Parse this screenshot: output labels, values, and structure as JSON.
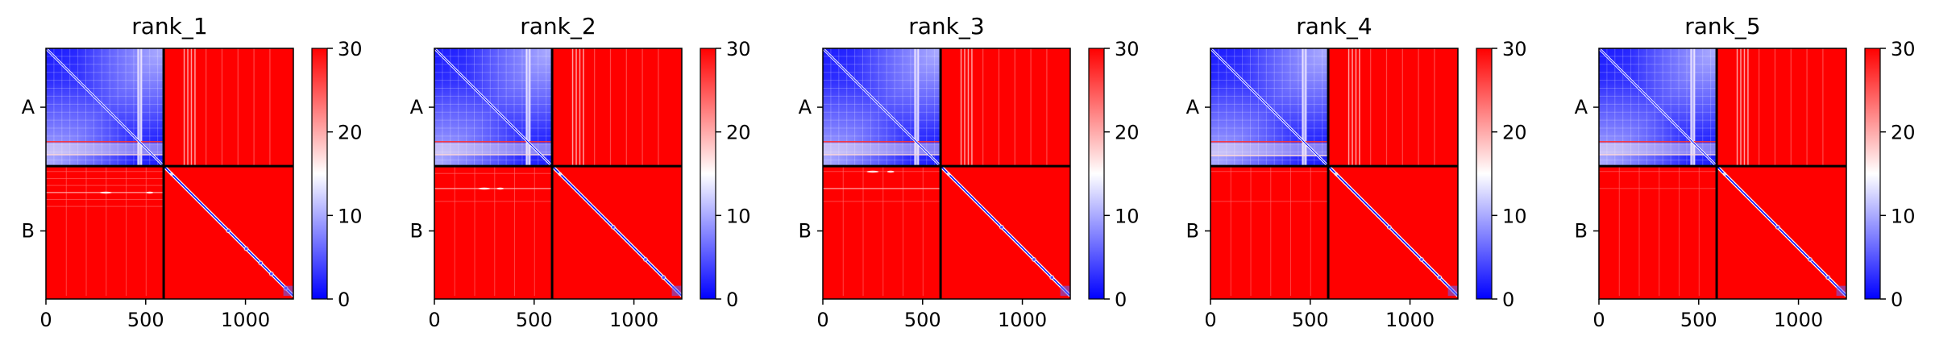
{
  "chart_data": [
    {
      "type": "heatmap",
      "title": "rank_1",
      "x_range": [
        0,
        1240
      ],
      "x_ticks": [
        0,
        500,
        1000
      ],
      "chain_boundary": 590,
      "chains": [
        "A",
        "B"
      ],
      "colorbar": {
        "min": 0,
        "max": 30,
        "ticks": [
          0,
          10,
          20,
          30
        ],
        "colormap": "bwr"
      },
      "features": {
        "a_band_x": 470,
        "b_in_a_band_x": 720,
        "a_stripes_y": [
          465,
          530
        ],
        "b_hlines_y": [
          25,
          60,
          95,
          130,
          165,
          200
        ],
        "b_strong_hlines_y": [
          130
        ],
        "b_vlines_x": [
          100,
          200,
          300,
          400,
          500
        ],
        "b_blob_x": [
          300,
          520
        ],
        "b_blob_y": 130,
        "diag_knots": [
          180,
          230,
          270,
          300,
          340
        ]
      }
    },
    {
      "type": "heatmap",
      "title": "rank_2",
      "x_range": [
        0,
        1240
      ],
      "x_ticks": [
        0,
        500,
        1000
      ],
      "chain_boundary": 590,
      "chains": [
        "A",
        "B"
      ],
      "colorbar": {
        "min": 0,
        "max": 30,
        "ticks": [
          0,
          10,
          20,
          30
        ],
        "colormap": "bwr"
      },
      "features": {
        "a_band_x": 470,
        "b_in_a_band_x": 720,
        "a_stripes_y": [
          465,
          530
        ],
        "b_hlines_y": [
          35,
          110,
          175
        ],
        "b_strong_hlines_y": [
          110
        ],
        "b_vlines_x": [
          100,
          200,
          300,
          400,
          500
        ],
        "b_blob_x": [
          250,
          330
        ],
        "b_blob_y": 110,
        "diag_knots": [
          170,
          260,
          310
        ]
      }
    },
    {
      "type": "heatmap",
      "title": "rank_3",
      "x_range": [
        0,
        1240
      ],
      "x_ticks": [
        0,
        500,
        1000
      ],
      "chain_boundary": 590,
      "chains": [
        "A",
        "B"
      ],
      "colorbar": {
        "min": 0,
        "max": 30,
        "ticks": [
          0,
          10,
          20,
          30
        ],
        "colormap": "bwr"
      },
      "features": {
        "a_band_x": 470,
        "b_in_a_band_x": 720,
        "a_stripes_y": [
          465,
          530
        ],
        "b_hlines_y": [
          25,
          110,
          175
        ],
        "b_strong_hlines_y": [
          110
        ],
        "b_vlines_x": [
          100,
          200,
          300,
          400,
          500
        ],
        "b_blob_x": [
          250,
          340
        ],
        "b_blob_y": 25,
        "diag_knots": [
          170,
          260,
          310
        ]
      }
    },
    {
      "type": "heatmap",
      "title": "rank_4",
      "x_range": [
        0,
        1240
      ],
      "x_ticks": [
        0,
        500,
        1000
      ],
      "chain_boundary": 590,
      "chains": [
        "A",
        "B"
      ],
      "colorbar": {
        "min": 0,
        "max": 30,
        "ticks": [
          0,
          10,
          20,
          30
        ],
        "colormap": "bwr"
      },
      "features": {
        "a_band_x": 470,
        "b_in_a_band_x": 720,
        "a_stripes_y": [
          465,
          535
        ],
        "b_hlines_y": [
          25,
          175
        ],
        "b_strong_hlines_y": [],
        "b_vlines_x": [
          100,
          200,
          300,
          400,
          500
        ],
        "b_blob_x": [],
        "b_blob_y": 0,
        "diag_knots": [
          170,
          260,
          310
        ]
      }
    },
    {
      "type": "heatmap",
      "title": "rank_5",
      "x_range": [
        0,
        1240
      ],
      "x_ticks": [
        0,
        500,
        1000
      ],
      "chain_boundary": 590,
      "chains": [
        "A",
        "B"
      ],
      "colorbar": {
        "min": 0,
        "max": 30,
        "ticks": [
          0,
          10,
          20,
          30
        ],
        "colormap": "bwr"
      },
      "features": {
        "a_band_x": 470,
        "b_in_a_band_x": 720,
        "a_stripes_y": [
          465,
          530
        ],
        "b_hlines_y": [
          25,
          110
        ],
        "b_strong_hlines_y": [],
        "b_vlines_x": [
          100,
          200,
          300,
          400,
          500
        ],
        "b_blob_x": [],
        "b_blob_y": 0,
        "diag_knots": [
          170,
          260,
          310
        ]
      }
    }
  ]
}
